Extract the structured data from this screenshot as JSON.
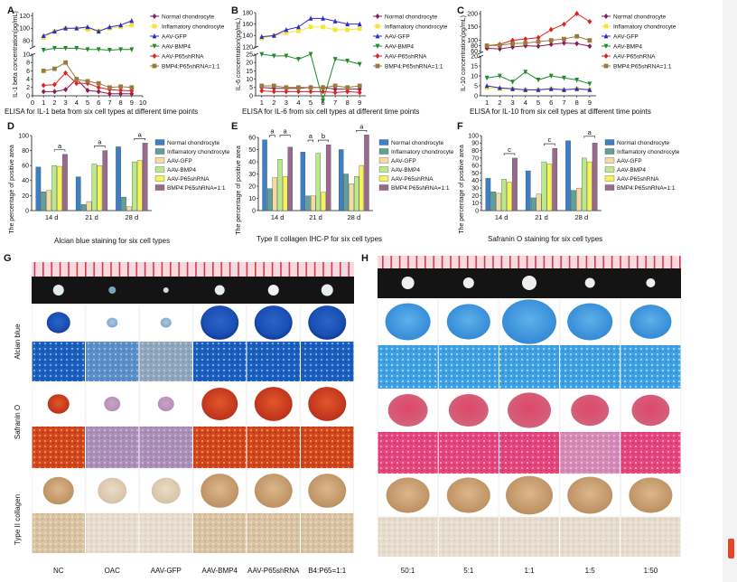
{
  "panel_labels": {
    "A": "A",
    "B": "B",
    "C": "C",
    "D": "D",
    "E": "E",
    "F": "F",
    "G": "G",
    "H": "H"
  },
  "legend_lines": [
    "Normal chondrocyte",
    "Inflamatory chondrocyte",
    "AAV-GFP",
    "AAV-BMP4",
    "AAV-P65shRNA",
    "BMP4:P65shRNA=1:1"
  ],
  "legend_bars": [
    "Normal chondrocyte",
    "Inflamatory chondrocyte",
    "AAV-GFP",
    "AAV-BMP4",
    "AAV-P65shRNA",
    "BMP4:P65shRNA=1:1"
  ],
  "series_colors": [
    "#8b1a55",
    "#f3e63a",
    "#2a2ad0",
    "#1e8a2a",
    "#e01f1f",
    "#9a7a3c"
  ],
  "bar_colors": [
    "#3d7fc4",
    "#5fa09a",
    "#f3dca0",
    "#b8e98a",
    "#f6f25a",
    "#9a6a8e"
  ],
  "chart_data": [
    {
      "id": "A",
      "type": "line",
      "ylabel": "IL-1 beta concentration(pg/mL)",
      "caption": "ELISA for IL-1 beta from six cell types at different time points",
      "x": [
        1,
        2,
        3,
        4,
        5,
        6,
        7,
        8,
        9
      ],
      "xticks": [
        "0",
        "1",
        "2",
        "3",
        "4",
        "5",
        "6",
        "7",
        "8",
        "9",
        "10"
      ],
      "yticks_top": [
        "80",
        "100",
        "120"
      ],
      "yticks_bottom": [
        "0",
        "2",
        "4",
        "6",
        "8",
        "10"
      ],
      "series": [
        {
          "name": "Normal chondrocyte",
          "values": [
            1,
            1,
            1.5,
            4,
            1.3,
            1,
            0.5,
            0.5,
            0.5
          ]
        },
        {
          "name": "Inflamatory chondrocyte",
          "values": [
            85,
            95,
            100,
            100,
            98,
            96,
            100,
            102,
            105
          ]
        },
        {
          "name": "AAV-GFP",
          "values": [
            88,
            95,
            100,
            100,
            102,
            95,
            102,
            105,
            112
          ]
        },
        {
          "name": "AAV-BMP4",
          "values": [
            65,
            68,
            68,
            68,
            66,
            66,
            65,
            66,
            66
          ]
        },
        {
          "name": "AAV-P65shRNA",
          "values": [
            2.5,
            2.7,
            5.5,
            3,
            3,
            2,
            1.5,
            1.3,
            1.2
          ]
        },
        {
          "name": "BMP4:P65shRNA=1:1",
          "values": [
            6,
            6.5,
            8,
            4,
            3.5,
            3,
            2,
            2.2,
            2
          ]
        }
      ]
    },
    {
      "id": "B",
      "type": "line",
      "ylabel": "IL-6 concentration(pg/mL)",
      "caption": "ELISA for IL-6 from six cell types at different time points",
      "x": [
        1,
        2,
        3,
        4,
        5,
        6,
        7,
        8,
        9
      ],
      "xticks": [
        "1",
        "2",
        "3",
        "4",
        "5",
        "6",
        "7",
        "8",
        "9"
      ],
      "yticks_top": [
        "120",
        "140",
        "160",
        "180"
      ],
      "yticks_bottom": [
        "0",
        "5",
        "10",
        "15",
        "20",
        "25"
      ],
      "series": [
        {
          "name": "Normal chondrocyte",
          "values": [
            5,
            4.5,
            4.5,
            4.5,
            5,
            5,
            4,
            4,
            4
          ]
        },
        {
          "name": "Inflamatory chondrocyte",
          "values": [
            135,
            140,
            145,
            148,
            155,
            155,
            150,
            150,
            152
          ]
        },
        {
          "name": "AAV-GFP",
          "values": [
            138,
            140,
            150,
            155,
            170,
            170,
            165,
            160,
            160
          ]
        },
        {
          "name": "AAV-BMP4",
          "values": [
            25,
            24,
            24,
            22,
            25,
            26,
            22,
            21,
            19
          ]
        },
        {
          "name": "AAV-P65shRNA",
          "values": [
            3,
            2.5,
            2.5,
            2.5,
            2.5,
            2.5,
            2,
            2.5,
            2
          ]
        },
        {
          "name": "BMP4:P65shRNA=1:1",
          "values": [
            6,
            6,
            5,
            5,
            5,
            5,
            6,
            5,
            6
          ]
        }
      ]
    },
    {
      "id": "C",
      "type": "line",
      "ylabel": "IL-10 concentration(pg/mL)",
      "caption": "ELISA for IL-10 from six cell types at different time points",
      "x": [
        1,
        2,
        3,
        4,
        5,
        6,
        7,
        8,
        9
      ],
      "xticks": [
        "1",
        "2",
        "3",
        "4",
        "5",
        "6",
        "7",
        "8",
        "9"
      ],
      "yticks_top": [
        "60",
        "80",
        "100",
        "150",
        "200"
      ],
      "yticks_bottom": [
        "0",
        "5",
        "10",
        "15",
        "20"
      ],
      "series": [
        {
          "name": "Normal chondrocyte",
          "values": [
            70,
            68,
            75,
            80,
            78,
            85,
            90,
            88,
            78
          ]
        },
        {
          "name": "Inflamatory chondrocyte",
          "values": [
            4,
            3.5,
            3.5,
            3,
            3,
            3.5,
            3,
            3.5,
            3
          ]
        },
        {
          "name": "AAV-GFP",
          "values": [
            5,
            4,
            3.5,
            3,
            3,
            3.5,
            3,
            3.5,
            3
          ]
        },
        {
          "name": "AAV-BMP4",
          "values": [
            9,
            10,
            7,
            12,
            8,
            10,
            9,
            8,
            6
          ]
        },
        {
          "name": "AAV-P65shRNA",
          "values": [
            80,
            85,
            100,
            105,
            110,
            140,
            160,
            200,
            170
          ]
        },
        {
          "name": "BMP4:P65shRNA=1:1",
          "values": [
            80,
            82,
            88,
            90,
            95,
            100,
            105,
            115,
            100
          ]
        }
      ]
    },
    {
      "id": "D",
      "type": "bar",
      "ylabel": "The percentage of positive area",
      "caption": "Alcian blue staining for six cell types",
      "categories": [
        "14 d",
        "21 d",
        "28 d"
      ],
      "ylim": [
        0,
        100
      ],
      "yticks": [
        "0",
        "20",
        "40",
        "60",
        "80",
        "100"
      ],
      "sig_labels": [
        "a",
        "a",
        "a"
      ],
      "series": [
        {
          "name": "Normal chondrocyte",
          "values": [
            58,
            45,
            85
          ]
        },
        {
          "name": "Inflamatory chondrocyte",
          "values": [
            25,
            8,
            18
          ]
        },
        {
          "name": "AAV-GFP",
          "values": [
            27,
            12,
            5
          ]
        },
        {
          "name": "AAV-BMP4",
          "values": [
            60,
            62,
            65
          ]
        },
        {
          "name": "AAV-P65shRNA",
          "values": [
            59,
            60,
            67
          ]
        },
        {
          "name": "BMP4:P65shRNA=1:1",
          "values": [
            75,
            80,
            90
          ]
        }
      ]
    },
    {
      "id": "E",
      "type": "bar",
      "ylabel": "The percentage of positive area",
      "caption": "Type II collagen IHC-P for six cell types",
      "categories": [
        "14 d",
        "21 d",
        "28 d"
      ],
      "ylim": [
        0,
        60
      ],
      "yticks": [
        "0",
        "10",
        "20",
        "30",
        "40",
        "50",
        "60"
      ],
      "sig_labels": [
        "a",
        "a",
        "a",
        "b",
        "a"
      ],
      "series": [
        {
          "name": "Normal chondrocyte",
          "values": [
            58,
            48,
            50
          ]
        },
        {
          "name": "Inflamatory chondrocyte",
          "values": [
            18,
            12,
            30
          ]
        },
        {
          "name": "AAV-GFP",
          "values": [
            27,
            12,
            22
          ]
        },
        {
          "name": "AAV-BMP4",
          "values": [
            42,
            47,
            28
          ]
        },
        {
          "name": "AAV-P65shRNA",
          "values": [
            28,
            15,
            37
          ]
        },
        {
          "name": "BMP4:P65shRNA=1:1",
          "values": [
            52,
            54,
            62
          ]
        }
      ]
    },
    {
      "id": "F",
      "type": "bar",
      "ylabel": "The percentage of positive area",
      "caption": "Safranin O staining for six cell types",
      "categories": [
        "14 d",
        "21 d",
        "28 d"
      ],
      "ylim": [
        0,
        100
      ],
      "yticks": [
        "0",
        "10",
        "20",
        "30",
        "40",
        "50",
        "60",
        "70",
        "80",
        "90",
        "100"
      ],
      "sig_labels": [
        "c",
        "c",
        "a"
      ],
      "series": [
        {
          "name": "Normal chondrocyte",
          "values": [
            43,
            53,
            93
          ]
        },
        {
          "name": "Inflamatory chondrocyte",
          "values": [
            25,
            17,
            27
          ]
        },
        {
          "name": "AAV-GFP",
          "values": [
            23,
            22,
            30
          ]
        },
        {
          "name": "AAV-BMP4",
          "values": [
            42,
            65,
            70
          ]
        },
        {
          "name": "AAV-P65shRNA",
          "values": [
            38,
            62,
            65
          ]
        },
        {
          "name": "BMP4:P65shRNA=1:1",
          "values": [
            70,
            83,
            90
          ]
        }
      ]
    }
  ],
  "panel_G": {
    "row_labels": [
      "Alcian blue",
      "Safranin O",
      "Type II collagen"
    ],
    "column_labels": [
      "NC",
      "OAC",
      "AAV-GFP",
      "AAV-BMP4",
      "AAV-P65shRNA",
      "B4:P65=1:1"
    ]
  },
  "panel_H": {
    "column_labels": [
      "50:1",
      "5:1",
      "1:1",
      "1:5",
      "1:50"
    ]
  }
}
